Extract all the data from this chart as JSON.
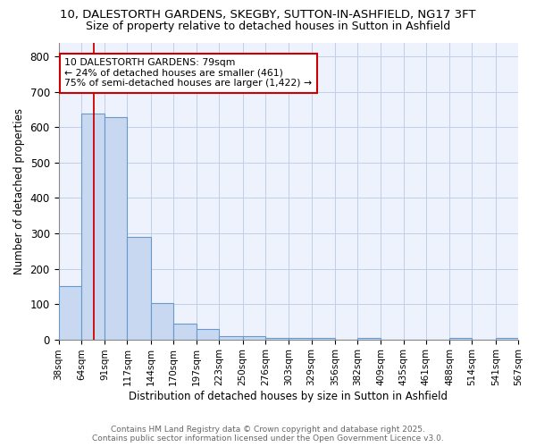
{
  "title1": "10, DALESTORTH GARDENS, SKEGBY, SUTTON-IN-ASHFIELD, NG17 3FT",
  "title2": "Size of property relative to detached houses in Sutton in Ashfield",
  "xlabel": "Distribution of detached houses by size in Sutton in Ashfield",
  "ylabel": "Number of detached properties",
  "bin_labels": [
    "38sqm",
    "64sqm",
    "91sqm",
    "117sqm",
    "144sqm",
    "170sqm",
    "197sqm",
    "223sqm",
    "250sqm",
    "276sqm",
    "303sqm",
    "329sqm",
    "356sqm",
    "382sqm",
    "409sqm",
    "435sqm",
    "461sqm",
    "488sqm",
    "514sqm",
    "541sqm",
    "567sqm"
  ],
  "bin_edges": [
    38,
    64,
    91,
    117,
    144,
    170,
    197,
    223,
    250,
    276,
    303,
    329,
    356,
    382,
    409,
    435,
    461,
    488,
    514,
    541,
    567
  ],
  "bar_heights": [
    150,
    640,
    630,
    290,
    102,
    45,
    30,
    10,
    10,
    5,
    5,
    5,
    0,
    5,
    0,
    0,
    0,
    5,
    0,
    5
  ],
  "bar_color": "#c8d8f0",
  "bar_edge_color": "#6699cc",
  "property_size": 79,
  "vline_color": "#cc0000",
  "annotation_text": "10 DALESTORTH GARDENS: 79sqm\n← 24% of detached houses are smaller (461)\n75% of semi-detached houses are larger (1,422) →",
  "annotation_box_color": "#cc0000",
  "ylim": [
    0,
    840
  ],
  "yticks": [
    0,
    100,
    200,
    300,
    400,
    500,
    600,
    700,
    800
  ],
  "grid_color": "#c0cfe8",
  "bg_color": "#eef2fc",
  "footnote": "Contains HM Land Registry data © Crown copyright and database right 2025.\nContains public sector information licensed under the Open Government Licence v3.0.",
  "title_fontsize": 9.5,
  "subtitle_fontsize": 9
}
